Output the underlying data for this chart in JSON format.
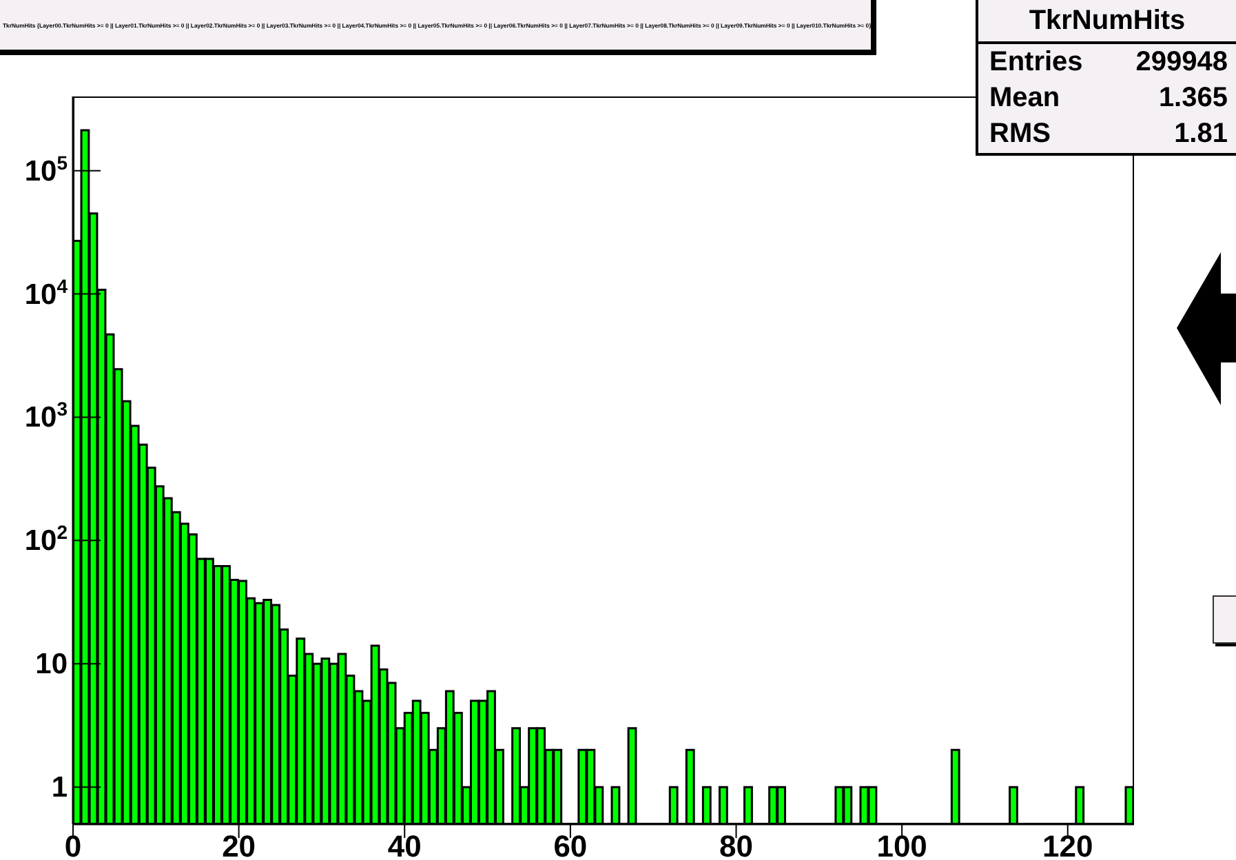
{
  "chart_data": {
    "type": "histogram",
    "title": "TkrNumHits {Layer00.TkrNumHits >= 0 || Layer01.TkrNumHits >= 0 || Layer02.TkrNumHits >= 0 || Layer03.TkrNumHits >= 0 || Layer04.TkrNumHits >= 0 || Layer05.TkrNumHits >= 0 || Layer06.TkrNumHits >= 0 || Layer07.TkrNumHits >= 0 || Layer08.TkrNumHits >= 0 || Layer09.TkrNumHits >= 0 || Layer010.TkrNumHits >= 0}",
    "annotations": [
      "TkrNumHits",
      "Entries",
      "299948",
      "Mean",
      "1.365",
      "RMS",
      "1.81"
    ],
    "bins": [
      0,
      1,
      2,
      3,
      4,
      5,
      6,
      7,
      8,
      9,
      10,
      11,
      12,
      13,
      14,
      15,
      16,
      17,
      18,
      19,
      20,
      21,
      22,
      23,
      24,
      25,
      26,
      27,
      28,
      29,
      30,
      31,
      32,
      33,
      34,
      35,
      36,
      37,
      38,
      39,
      40,
      41,
      42,
      43,
      44,
      45,
      46,
      47,
      48,
      49,
      50,
      51,
      52,
      53,
      54,
      55,
      56,
      57,
      58,
      59,
      60,
      61,
      62,
      63,
      64,
      65,
      66,
      67,
      68,
      69,
      70,
      71,
      72,
      73,
      74,
      75,
      76,
      77,
      78,
      79,
      80,
      81,
      82,
      83,
      84,
      85,
      86,
      87,
      88,
      89,
      90,
      91,
      92,
      93,
      94,
      95,
      96,
      97,
      98,
      99,
      100,
      101,
      102,
      103,
      104,
      105,
      106,
      107,
      108,
      109,
      110,
      111,
      112,
      113,
      114,
      115,
      116,
      117,
      118,
      119,
      120,
      121,
      122,
      123,
      124,
      125,
      126,
      127,
      128
    ],
    "values": [
      27000,
      213000,
      45000,
      10800,
      4700,
      2450,
      1350,
      850,
      600,
      390,
      275,
      220,
      170,
      137,
      112,
      71,
      71,
      62,
      62,
      48,
      47,
      34,
      31,
      33,
      30,
      19,
      8,
      16,
      12,
      10,
      11,
      10,
      12,
      8,
      6,
      5,
      14,
      9,
      7,
      3,
      4,
      5,
      4,
      2,
      3,
      6,
      4,
      1,
      5,
      5,
      6,
      2,
      null,
      3,
      1,
      3,
      3,
      2,
      2,
      null,
      null,
      2,
      2,
      1,
      null,
      1,
      null,
      3,
      null,
      null,
      null,
      null,
      1,
      null,
      2,
      null,
      1,
      null,
      1,
      null,
      null,
      1,
      null,
      null,
      1,
      1,
      null,
      null,
      null,
      null,
      null,
      null,
      1,
      1,
      null,
      1,
      1,
      null,
      null,
      null,
      null,
      null,
      null,
      null,
      null,
      null,
      2,
      null,
      null,
      null,
      null,
      null,
      null,
      1,
      null,
      null,
      null,
      null,
      null,
      null,
      null,
      1,
      null,
      null,
      null,
      null,
      null,
      1
    ],
    "color": "#00ff00",
    "xlim": [
      0,
      128
    ],
    "xticks": [
      0,
      20,
      40,
      60,
      80,
      100,
      120
    ],
    "ylim": [
      0.5,
      400000
    ],
    "log": "y",
    "yticks": [
      1,
      10,
      {
        "value": 100,
        "label": "10$^{2}$"
      },
      {
        "value": 1000,
        "label": "10$^{3}$"
      },
      {
        "value": 10000,
        "label": "10$^{4}$"
      },
      {
        "value": 100000,
        "label": "10$^{5}$"
      }
    ]
  }
}
